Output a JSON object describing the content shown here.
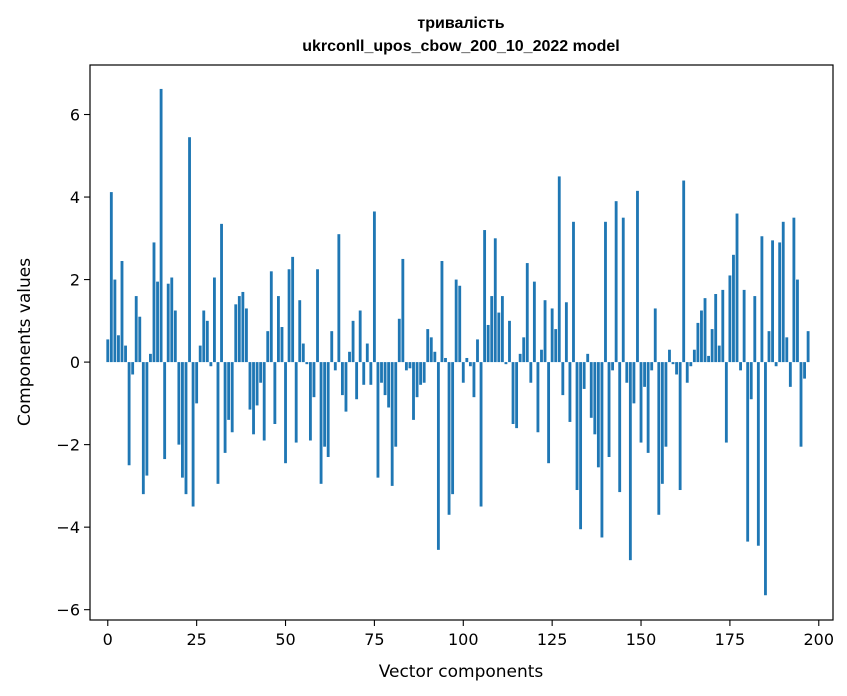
{
  "chart_data": {
    "type": "bar",
    "title": "тривалість",
    "subtitle": "ukrconll_upos_cbow_200_10_2022 model",
    "xlabel": "Vector components",
    "ylabel": "Components values",
    "xlim": [
      -5,
      204
    ],
    "ylim": [
      -6.25,
      7.2
    ],
    "xticks": [
      0,
      25,
      50,
      75,
      100,
      125,
      150,
      175,
      200
    ],
    "yticks": [
      -6,
      -4,
      -2,
      0,
      2,
      4,
      6
    ],
    "xtick_labels": [
      "0",
      "25",
      "50",
      "75",
      "100",
      "125",
      "150",
      "175",
      "200"
    ],
    "ytick_labels": [
      "−6",
      "−4",
      "−2",
      "0",
      "2",
      "4",
      "6"
    ],
    "bar_color": "#1f77b4",
    "values": [
      0.55,
      4.12,
      2.0,
      0.65,
      2.45,
      0.4,
      -2.5,
      -0.3,
      1.6,
      1.1,
      -3.2,
      -2.75,
      0.2,
      2.9,
      1.95,
      6.62,
      -2.35,
      1.9,
      2.05,
      1.25,
      -2.0,
      -2.8,
      -3.2,
      5.45,
      -3.5,
      -1.0,
      0.4,
      1.25,
      1.0,
      -0.1,
      2.05,
      -2.95,
      3.35,
      -2.2,
      -1.4,
      -1.7,
      1.4,
      1.6,
      1.7,
      1.3,
      -1.15,
      -1.75,
      -1.05,
      -0.5,
      -1.9,
      0.75,
      2.2,
      -1.5,
      1.6,
      0.85,
      -2.45,
      2.25,
      2.55,
      -1.95,
      1.5,
      0.45,
      -0.05,
      -1.9,
      -0.85,
      2.25,
      -2.95,
      -2.05,
      -2.3,
      0.75,
      -0.2,
      3.1,
      -0.8,
      -1.2,
      0.25,
      1.0,
      -0.9,
      1.25,
      -0.55,
      0.45,
      -0.55,
      3.65,
      -2.8,
      -0.5,
      -0.8,
      -1.1,
      -3.0,
      -2.05,
      1.05,
      2.5,
      -0.2,
      -0.15,
      -1.4,
      -0.85,
      -0.55,
      -0.5,
      0.8,
      0.6,
      0.25,
      -4.55,
      2.45,
      0.1,
      -3.7,
      -3.2,
      2.0,
      1.85,
      -0.5,
      0.1,
      -0.1,
      -0.85,
      0.55,
      -3.5,
      3.2,
      0.9,
      1.6,
      3.0,
      1.2,
      1.6,
      -0.05,
      1.0,
      -1.5,
      -1.6,
      0.2,
      0.6,
      2.4,
      -0.5,
      1.95,
      -1.7,
      0.3,
      1.5,
      -2.45,
      1.3,
      0.8,
      4.5,
      -0.8,
      1.45,
      -1.45,
      3.4,
      -3.1,
      -4.05,
      -0.65,
      0.2,
      -1.35,
      -1.75,
      -2.55,
      -4.25,
      3.4,
      -2.3,
      -0.2,
      3.9,
      -3.15,
      3.5,
      -0.5,
      -4.8,
      -1.0,
      4.15,
      -1.95,
      -0.6,
      -2.2,
      -0.2,
      1.3,
      -3.7,
      -2.95,
      -2.05,
      0.3,
      -0.05,
      -0.3,
      -3.1,
      4.4,
      -0.5,
      -0.1,
      0.3,
      0.95,
      1.25,
      1.55,
      0.15,
      0.8,
      1.65,
      0.4,
      1.75,
      -1.95,
      2.1,
      2.6,
      3.6,
      -0.2,
      1.75,
      -4.35,
      -0.9,
      1.6,
      -4.45,
      3.05,
      -5.65,
      0.75,
      2.95,
      -0.1,
      2.9,
      3.4,
      0.6,
      -0.6,
      3.5,
      2.0,
      -2.05,
      -0.4,
      0.75
    ]
  }
}
